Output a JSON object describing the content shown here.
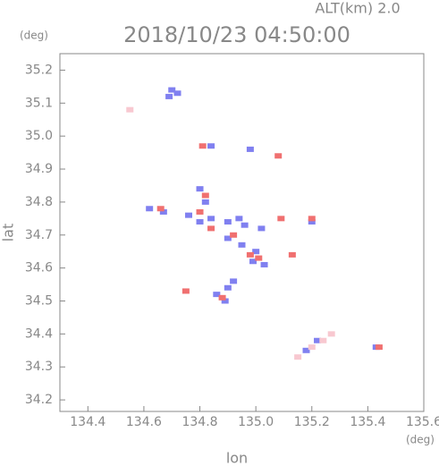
{
  "chart_data": {
    "type": "scatter",
    "title": "2018/10/23 04:50:00",
    "subtitle": "ALT(km) 2.0",
    "x_label": "lon",
    "y_label": "lat",
    "x_unit": "(deg)",
    "y_unit": "(deg)",
    "xlim": [
      134.3,
      135.6
    ],
    "ylim": [
      34.165,
      35.25
    ],
    "xticks": [
      134.4,
      134.6,
      134.8,
      {
        "value": 135,
        "label": "135.0"
      },
      135.2,
      135.4,
      135.6
    ],
    "yticks": [
      34.2,
      34.3,
      34.4,
      34.5,
      34.6,
      34.7,
      34.8,
      34.9,
      {
        "value": 35,
        "label": "35.0"
      },
      35.1,
      35.2
    ],
    "series": [
      {
        "color": "#8080f0",
        "x": [
          134.7,
          134.69,
          134.72,
          134.84,
          134.98,
          134.8,
          134.82,
          134.62,
          134.67,
          134.76,
          134.8,
          134.84,
          134.9,
          134.94,
          134.96,
          135.02,
          134.9,
          134.95,
          135.0,
          134.99,
          135.03,
          134.92,
          134.9,
          134.86,
          134.89,
          135.2,
          135.22,
          135.18,
          135.43
        ],
        "y": [
          35.14,
          35.12,
          35.13,
          34.97,
          34.96,
          34.84,
          34.8,
          34.78,
          34.77,
          34.76,
          34.74,
          34.75,
          34.74,
          34.75,
          34.73,
          34.72,
          34.69,
          34.67,
          34.65,
          34.62,
          34.61,
          34.56,
          34.54,
          34.52,
          34.5,
          34.74,
          34.38,
          34.35,
          34.36
        ]
      },
      {
        "color": "#f07070",
        "x": [
          134.81,
          135.08,
          134.82,
          134.66,
          134.8,
          134.84,
          134.92,
          134.98,
          135.01,
          134.88,
          134.75,
          135.2,
          135.09,
          135.13,
          135.44
        ],
        "y": [
          34.97,
          34.94,
          34.82,
          34.78,
          34.77,
          34.72,
          34.7,
          34.64,
          34.63,
          34.51,
          34.53,
          34.75,
          34.75,
          34.64,
          34.36
        ]
      },
      {
        "color": "#f8c8d0",
        "x": [
          135.15,
          135.2,
          135.24,
          135.27,
          134.55
        ],
        "y": [
          34.33,
          34.36,
          34.38,
          34.4,
          35.08
        ]
      }
    ]
  }
}
